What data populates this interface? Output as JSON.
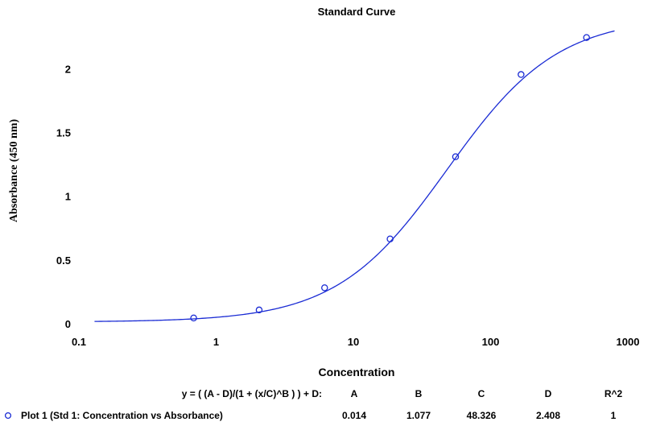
{
  "chart_data": {
    "type": "scatter",
    "title": "Standard Curve",
    "xlabel": "Concentration",
    "ylabel": "Absorbance (450 nm)",
    "xscale": "log",
    "xlim": [
      0.1,
      1000
    ],
    "ylim": [
      0,
      2.35
    ],
    "x_ticks": [
      "0.1",
      "1",
      "10",
      "100",
      "1000"
    ],
    "y_ticks": [
      "0",
      "0.5",
      "1",
      "1.5",
      "2"
    ],
    "grid": false,
    "series": [
      {
        "name": "Plot 1 (Std 1: Concentration vs Absorbance)",
        "marker": "circle",
        "color": "#1a2bd4",
        "x": [
          0.686,
          2.058,
          6.173,
          18.519,
          55.556,
          166.667,
          500
        ],
        "y": [
          0.045,
          0.108,
          0.282,
          0.665,
          1.31,
          1.955,
          2.245
        ]
      }
    ],
    "fit": {
      "model": "4PL",
      "color": "#1a2bd4",
      "params": {
        "A": 0.014,
        "B": 1.077,
        "C": 48.326,
        "D": 2.408
      },
      "x_range": [
        0.13,
        800
      ]
    },
    "legend": {
      "equation": "y = ( (A - D)/(1 + (x/C)^B ) ) + D:",
      "headers": [
        "A",
        "B",
        "C",
        "D",
        "R^2"
      ],
      "row_label": "Plot 1 (Std 1: Concentration vs Absorbance)",
      "row_values": [
        "0.014",
        "1.077",
        "48.326",
        "2.408",
        "1"
      ]
    }
  }
}
